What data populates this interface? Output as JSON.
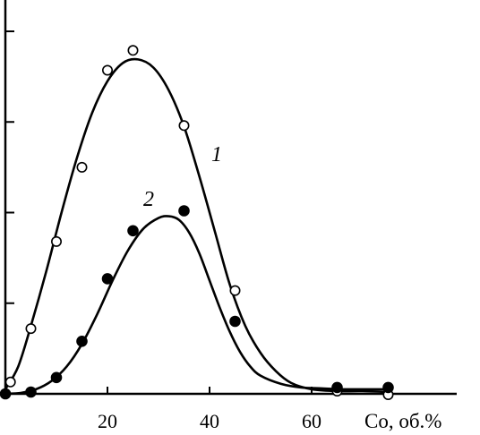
{
  "chart_data": {
    "type": "scatter",
    "title": "",
    "xlabel": "Co, об.%",
    "ylabel": "",
    "xlim": [
      0,
      88
    ],
    "ylim": [
      0,
      4.05
    ],
    "x_ticks": [
      20,
      40,
      60
    ],
    "y_tick_values": [
      1,
      2,
      3,
      4
    ],
    "grid": false,
    "series": [
      {
        "name": "1",
        "marker": "open-circle",
        "points": [
          [
            1,
            0.13
          ],
          [
            5,
            0.72
          ],
          [
            10,
            1.68
          ],
          [
            15,
            2.5
          ],
          [
            20,
            3.57
          ],
          [
            25,
            3.79
          ],
          [
            35,
            2.96
          ],
          [
            45,
            1.14
          ],
          [
            65,
            0.03
          ],
          [
            75,
            -0.01
          ]
        ],
        "fit_curve": [
          [
            0,
            0.05
          ],
          [
            2.5,
            0.3
          ],
          [
            5,
            0.75
          ],
          [
            8,
            1.35
          ],
          [
            11,
            2.0
          ],
          [
            14,
            2.6
          ],
          [
            17,
            3.1
          ],
          [
            20,
            3.45
          ],
          [
            23,
            3.65
          ],
          [
            26,
            3.69
          ],
          [
            29,
            3.6
          ],
          [
            32,
            3.35
          ],
          [
            35,
            2.95
          ],
          [
            38,
            2.4
          ],
          [
            41,
            1.8
          ],
          [
            44,
            1.2
          ],
          [
            47,
            0.75
          ],
          [
            50,
            0.45
          ],
          [
            53,
            0.25
          ],
          [
            56,
            0.12
          ],
          [
            60,
            0.05
          ],
          [
            65,
            0.03
          ],
          [
            70,
            0.03
          ],
          [
            75,
            0.02
          ]
        ]
      },
      {
        "name": "2",
        "marker": "filled-circle",
        "points": [
          [
            0,
            0.0
          ],
          [
            5,
            0.02
          ],
          [
            10,
            0.18
          ],
          [
            15,
            0.58
          ],
          [
            20,
            1.27
          ],
          [
            25,
            1.8
          ],
          [
            35,
            2.02
          ],
          [
            45,
            0.8
          ],
          [
            65,
            0.07
          ],
          [
            75,
            0.07
          ]
        ],
        "fit_curve": [
          [
            0,
            0.0
          ],
          [
            3,
            0.01
          ],
          [
            6,
            0.05
          ],
          [
            9,
            0.14
          ],
          [
            12,
            0.3
          ],
          [
            15,
            0.55
          ],
          [
            18,
            0.88
          ],
          [
            21,
            1.25
          ],
          [
            24,
            1.58
          ],
          [
            27,
            1.82
          ],
          [
            30,
            1.94
          ],
          [
            32,
            1.96
          ],
          [
            34,
            1.92
          ],
          [
            36,
            1.78
          ],
          [
            38,
            1.55
          ],
          [
            40,
            1.25
          ],
          [
            42,
            0.95
          ],
          [
            44,
            0.68
          ],
          [
            46,
            0.46
          ],
          [
            48,
            0.3
          ],
          [
            50,
            0.2
          ],
          [
            54,
            0.11
          ],
          [
            58,
            0.07
          ],
          [
            62,
            0.06
          ],
          [
            66,
            0.05
          ],
          [
            70,
            0.05
          ],
          [
            75,
            0.05
          ]
        ]
      }
    ]
  }
}
